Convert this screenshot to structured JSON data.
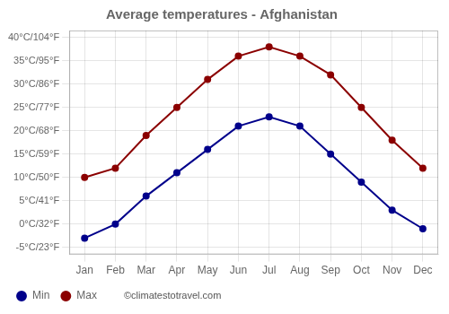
{
  "chart_data": {
    "type": "line",
    "title": "Average temperatures - Afghanistan",
    "categories": [
      "Jan",
      "Feb",
      "Mar",
      "Apr",
      "May",
      "Jun",
      "Jul",
      "Aug",
      "Sep",
      "Oct",
      "Nov",
      "Dec"
    ],
    "series": [
      {
        "name": "Min",
        "color": "#00008B",
        "marker": "circle",
        "values": [
          -3,
          0,
          6,
          11,
          16,
          21,
          23,
          21,
          15,
          9,
          3,
          -1
        ]
      },
      {
        "name": "Max",
        "color": "#8B0000",
        "marker": "circle",
        "values": [
          10,
          12,
          19,
          25,
          31,
          36,
          38,
          36,
          32,
          25,
          18,
          12
        ]
      }
    ],
    "ylim": [
      -6.5,
      41.5
    ],
    "yticks": [
      {
        "value": -5,
        "label": "-5°C/23°F"
      },
      {
        "value": 0,
        "label": "0°C/32°F"
      },
      {
        "value": 5,
        "label": "5°C/41°F"
      },
      {
        "value": 10,
        "label": "10°C/50°F"
      },
      {
        "value": 15,
        "label": "15°C/59°F"
      },
      {
        "value": 20,
        "label": "20°C/68°F"
      },
      {
        "value": 25,
        "label": "25°C/77°F"
      },
      {
        "value": 30,
        "label": "30°C/86°F"
      },
      {
        "value": 35,
        "label": "35°C/95°F"
      },
      {
        "value": 40,
        "label": "40°C/104°F"
      }
    ],
    "grid": true,
    "legend": "bottom",
    "annotations": [
      "©climatestotravel.com"
    ]
  }
}
